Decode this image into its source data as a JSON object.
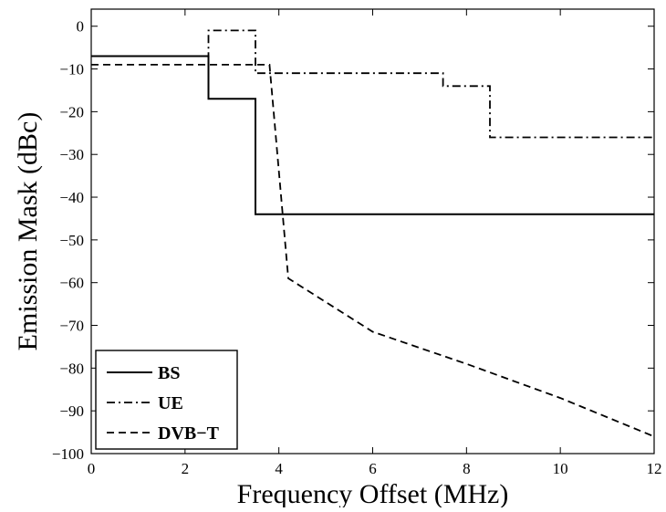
{
  "chart_data": {
    "type": "line",
    "title": "",
    "xlabel": "Frequency Offset (MHz)",
    "ylabel": "Emission Mask (dBc)",
    "xlim": [
      0,
      12
    ],
    "ylim": [
      -100,
      4
    ],
    "xticks": [
      0,
      2,
      4,
      6,
      8,
      10,
      12
    ],
    "yticks": [
      0,
      -10,
      -20,
      -30,
      -40,
      -50,
      -60,
      -70,
      -80,
      -90,
      -100
    ],
    "xtick_labels": [
      "0",
      "2",
      "4",
      "6",
      "8",
      "10",
      "12"
    ],
    "ytick_labels": [
      "0",
      "−10",
      "−20",
      "−30",
      "−40",
      "−50",
      "−60",
      "−70",
      "−80",
      "−90",
      "−100"
    ],
    "grid": false,
    "legend_position": "bottom-left",
    "series": [
      {
        "name": "BS",
        "style": "solid",
        "color": "#000000",
        "x": [
          0,
          2.5,
          2.5,
          3.5,
          3.5,
          12
        ],
        "y": [
          -7,
          -7,
          -17,
          -17,
          -44,
          -44
        ]
      },
      {
        "name": "UE",
        "style": "dashdot",
        "color": "#000000",
        "x": [
          2.5,
          2.5,
          3.5,
          3.5,
          7.5,
          7.5,
          8.5,
          8.5,
          12
        ],
        "y": [
          -8,
          -1,
          -1,
          -11,
          -11,
          -14,
          -14,
          -26,
          -26
        ]
      },
      {
        "name": "DVB−T",
        "style": "dashed",
        "color": "#000000",
        "x": [
          0,
          3.8,
          4.2,
          6,
          8,
          10,
          12
        ],
        "y": [
          -9,
          -9,
          -59,
          -71.5,
          -79,
          -87,
          -96
        ]
      }
    ]
  }
}
